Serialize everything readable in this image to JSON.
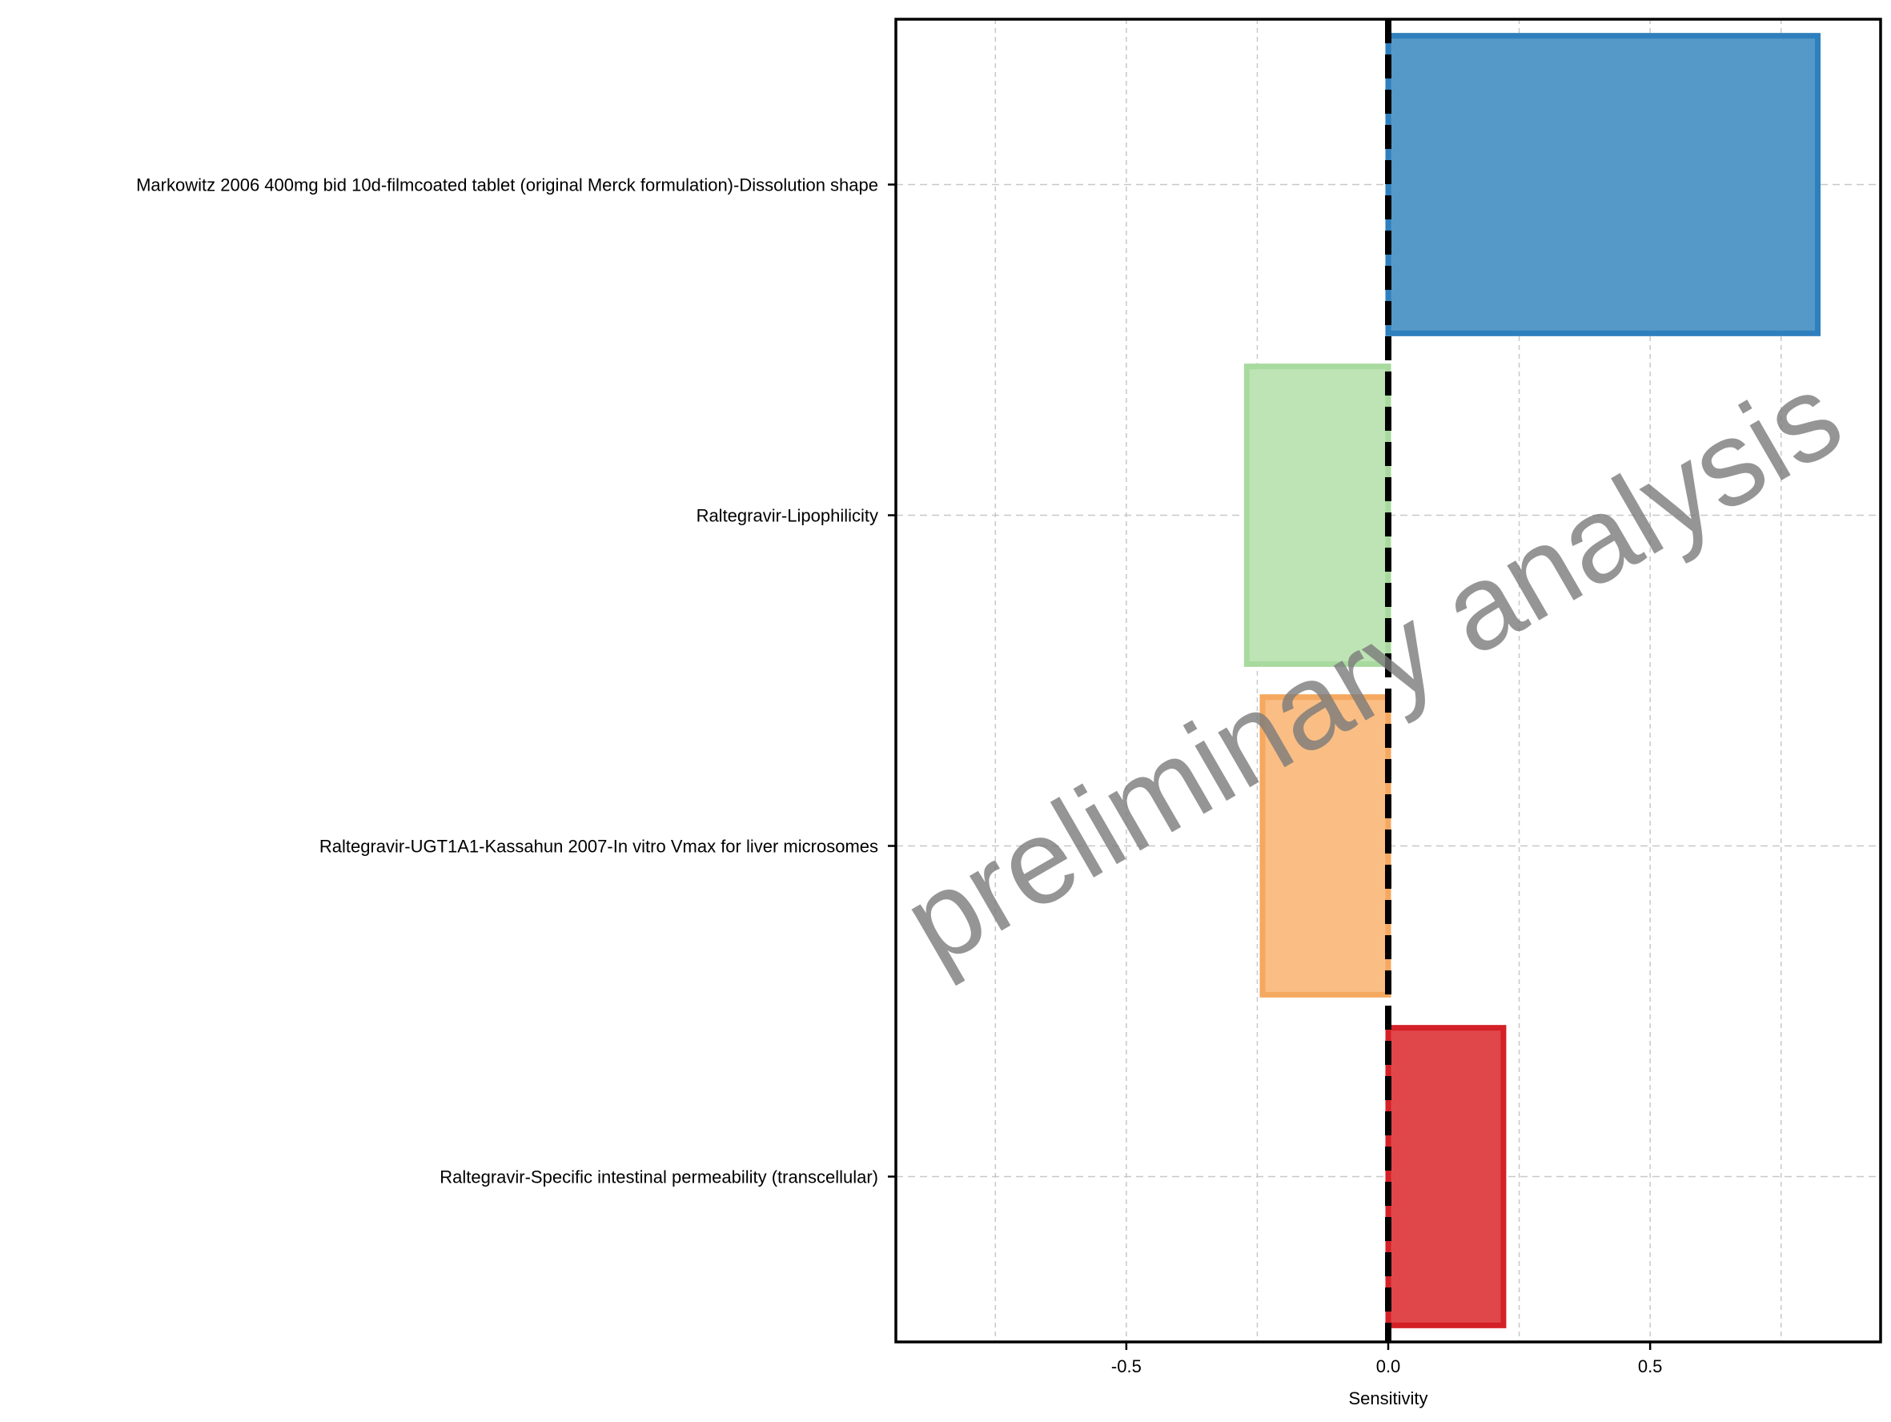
{
  "chart_data": {
    "type": "bar",
    "orientation": "horizontal",
    "categories": [
      "Markowitz 2006 400mg bid 10d-filmcoated tablet (original Merck formulation)-Dissolution shape",
      "Raltegravir-Lipophilicity",
      "Raltegravir-UGT1A1-Kassahun 2007-In vitro Vmax for liver microsomes",
      "Raltegravir-Specific intestinal permeability (transcellular)"
    ],
    "values": [
      0.82,
      -0.27,
      -0.24,
      0.22
    ],
    "fill_colors": [
      "#5599c8",
      "#bee4b5",
      "#fabe84",
      "#e0474b"
    ],
    "edge_colors": [
      "#2e7fbd",
      "#a8d99e",
      "#f5a85f",
      "#d42027"
    ],
    "xlabel": "Sensitivity",
    "ylabel": "",
    "xlim": [
      -0.94,
      0.94
    ],
    "xticks": [
      -0.5,
      0.0,
      0.5
    ],
    "xtick_labels": [
      "-0.5",
      "0.0",
      "0.5"
    ],
    "minor_gridlines_x": [
      -0.75,
      -0.25,
      0.25,
      0.75
    ],
    "grid": true,
    "reference_line": {
      "x": 0,
      "style": "dashed",
      "color": "#000000"
    },
    "watermark": "preliminary analysis",
    "legend": "none"
  }
}
